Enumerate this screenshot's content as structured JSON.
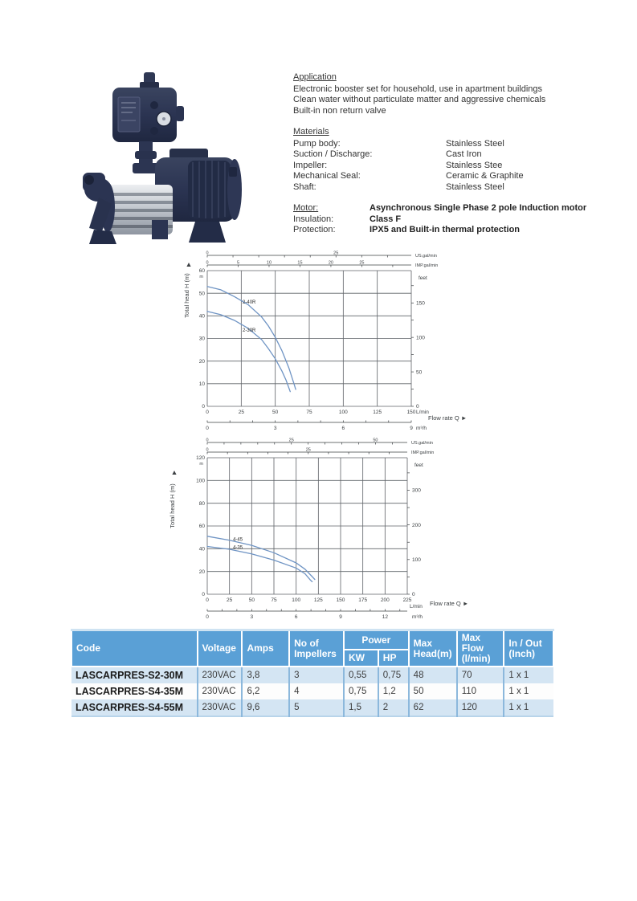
{
  "sections": {
    "application": {
      "title": "Application",
      "lines": [
        "Electronic booster set for household, use in apartment buildings",
        "Clean water without particulate matter and aggressive chemicals",
        "Built-in non return valve"
      ]
    },
    "materials": {
      "title": "Materials",
      "rows": [
        {
          "label": "Pump body:",
          "value": "Stainless Steel"
        },
        {
          "label": "Suction / Discharge:",
          "value": "Cast Iron"
        },
        {
          "label": "Impeller:",
          "value": "Stainless Stee"
        },
        {
          "label": "Mechanical Seal:",
          "value": "Ceramic & Graphite"
        },
        {
          "label": "Shaft:",
          "value": "Stainless Steel"
        }
      ]
    },
    "motor": {
      "rows": [
        {
          "label": "Motor:",
          "value": "Asynchronous Single Phase 2 pole Induction motor"
        },
        {
          "label": "Insulation:",
          "value": "Class F"
        },
        {
          "label": "Protection:",
          "value": "IPX5 and Built-in thermal protection"
        }
      ]
    }
  },
  "chart_data": [
    {
      "type": "line",
      "title": "",
      "ylabel": "Total head H (m)",
      "xlabel": "Flow rate Q  ►",
      "x_unit": "L/min",
      "y_unit": "m",
      "x_range": [
        0,
        150
      ],
      "y_range": [
        0,
        60
      ],
      "x_ticks": [
        0,
        25,
        50,
        75,
        100,
        125,
        150
      ],
      "y_ticks": [
        0,
        10,
        20,
        30,
        40,
        50,
        60
      ],
      "grid": true,
      "color": "#6f94c4",
      "top_axis1": {
        "label": "US.gal/min",
        "factor": 0.2642,
        "tick_labels": [
          0,
          25
        ],
        "minor_step": 5
      },
      "top_axis2": {
        "label": "IMP.gal/min",
        "factor": 0.22,
        "tick_labels": [
          0,
          5,
          10,
          15,
          20,
          25
        ],
        "minor_step": 5
      },
      "right_axis": {
        "label": "feet",
        "factor": 3.2808,
        "ticks": [
          0,
          50,
          100,
          150
        ],
        "minor_step": 25
      },
      "bottom_axis2": {
        "label": "m³/h",
        "factor": 0.06,
        "ticks": [
          0,
          3,
          6,
          9
        ],
        "minor_step": 1
      },
      "series": [
        {
          "name": "2-40R",
          "label_at": [
            26,
            45.5
          ],
          "points": [
            [
              0,
              53
            ],
            [
              10,
              51.5
            ],
            [
              20,
              48.5
            ],
            [
              30,
              45
            ],
            [
              40,
              39.5
            ],
            [
              45,
              35.5
            ],
            [
              50,
              30.5
            ],
            [
              55,
              24.5
            ],
            [
              60,
              17
            ],
            [
              64,
              9.5
            ],
            [
              65,
              7.5
            ]
          ]
        },
        {
          "name": "2-30R",
          "label_at": [
            26,
            33
          ],
          "points": [
            [
              0,
              42
            ],
            [
              10,
              40.5
            ],
            [
              20,
              38
            ],
            [
              30,
              34.5
            ],
            [
              40,
              29.5
            ],
            [
              45,
              25.5
            ],
            [
              50,
              21
            ],
            [
              55,
              15.5
            ],
            [
              58,
              11.5
            ],
            [
              61,
              6.5
            ]
          ]
        }
      ]
    },
    {
      "type": "line",
      "title": "",
      "ylabel": "Total head H (m)",
      "xlabel": "Flow rate Q  ►",
      "x_unit": "L/min",
      "y_unit": "m",
      "x_range": [
        0,
        225
      ],
      "y_range": [
        0,
        120
      ],
      "x_ticks": [
        0,
        25,
        50,
        75,
        100,
        125,
        150,
        175,
        200,
        225
      ],
      "y_ticks": [
        0,
        20,
        40,
        60,
        80,
        100,
        120
      ],
      "grid": true,
      "color": "#6f94c4",
      "top_axis1": {
        "label": "US.gal/min",
        "factor": 0.2642,
        "tick_labels": [
          0,
          25,
          50
        ],
        "minor_step": 5
      },
      "top_axis2": {
        "label": "IMP.gal/min",
        "factor": 0.22,
        "tick_labels": [
          0,
          25
        ],
        "minor_step": 5
      },
      "right_axis": {
        "label": "feet",
        "factor": 3.2808,
        "ticks": [
          0,
          100,
          200,
          300
        ],
        "minor_step": 50
      },
      "bottom_axis2": {
        "label": "m³/h",
        "factor": 0.06,
        "ticks": [
          0,
          3,
          6,
          9,
          12
        ],
        "minor_step": 1
      },
      "series": [
        {
          "name": "4-45",
          "label_at": [
            29,
            47
          ],
          "points": [
            [
              0,
              51
            ],
            [
              25,
              47.5
            ],
            [
              50,
              43
            ],
            [
              75,
              36.5
            ],
            [
              100,
              27.5
            ],
            [
              110,
              22
            ],
            [
              118,
              15.5
            ],
            [
              121,
              13
            ]
          ]
        },
        {
          "name": "4-35",
          "label_at": [
            29,
            40
          ],
          "points": [
            [
              0,
              42
            ],
            [
              25,
              39.5
            ],
            [
              50,
              35.5
            ],
            [
              75,
              30
            ],
            [
              100,
              23
            ],
            [
              110,
              18
            ],
            [
              116,
              12.5
            ],
            [
              118,
              11
            ]
          ]
        }
      ]
    }
  ],
  "table": {
    "header": {
      "code": "Code",
      "voltage": "Voltage",
      "amps": "Amps",
      "impellers": "No of\nImpellers",
      "power": "Power",
      "kw": "KW",
      "hp": "HP",
      "max_head": "Max\nHead(m)",
      "max_flow": "Max\nFlow\n(l/min)",
      "in_out": "In / Out\n(Inch)"
    },
    "rows": [
      {
        "code": "LASCARPRES-S2-30M",
        "voltage": "230VAC",
        "amps": "3,8",
        "impellers": "3",
        "kw": "0,55",
        "hp": "0,75",
        "max_head": "48",
        "max_flow": "70",
        "in_out": "1 x 1"
      },
      {
        "code": "LASCARPRES-S4-35M",
        "voltage": "230VAC",
        "amps": "6,2",
        "impellers": "4",
        "kw": "0,75",
        "hp": "1,2",
        "max_head": "50",
        "max_flow": "110",
        "in_out": "1 x 1"
      },
      {
        "code": "LASCARPRES-S4-55M",
        "voltage": "230VAC",
        "amps": "9,6",
        "impellers": "5",
        "kw": "1,5",
        "hp": "2",
        "max_head": "62",
        "max_flow": "120",
        "in_out": "1 x 1"
      }
    ]
  }
}
